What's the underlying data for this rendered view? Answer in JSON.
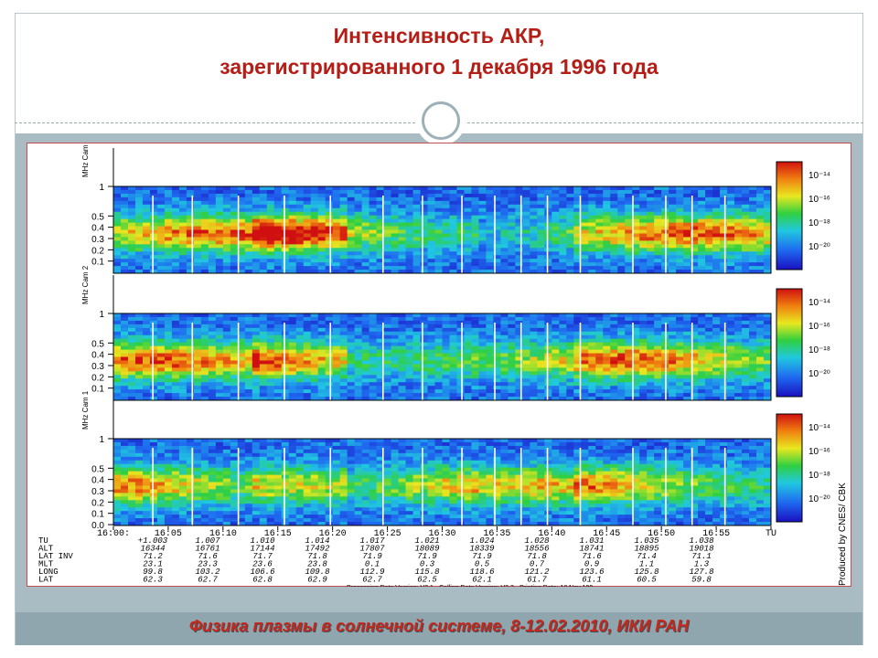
{
  "slide": {
    "title_line1": "Интенсивность АКР,",
    "title_line2": "зарегистрированного 1 декабря 1996 года",
    "footer": "Физика плазмы в солнечной системе, 8-12.02.2010, ИКИ РАН"
  },
  "chart_data": {
    "type": "heatmap",
    "panels": [
      {
        "ylabel": "MHz Cam 3",
        "yticks": [
          "1",
          "0.5",
          "0.4",
          "0.3",
          "0.2",
          "0.1"
        ]
      },
      {
        "ylabel": "MHz Cam 2",
        "yticks": [
          "1",
          "0.5",
          "0.4",
          "0.3",
          "0.2",
          "0.1"
        ]
      },
      {
        "ylabel": "MHz Cam 1",
        "yticks": [
          "1",
          "0.5",
          "0.4",
          "0.3",
          "0.2",
          "0.1",
          "0.0"
        ]
      }
    ],
    "colorbar_ticks": [
      "10⁻¹⁴",
      "10⁻¹⁶",
      "10⁻¹⁸",
      "10⁻²⁰"
    ],
    "x_ticks": [
      "16:00:",
      "16:05",
      "16:10",
      "16:15",
      "16:20",
      "16:25",
      "16:30",
      "16:35",
      "16:40",
      "16:45",
      "16:50",
      "16:55",
      "TU"
    ],
    "ephemeris": [
      {
        "label": "TU",
        "values": [
          "+1.003",
          "1.007",
          "1.010",
          "1.014",
          "1.017",
          "1.021",
          "1.024",
          "1.028",
          "1.031",
          "1.035",
          "1.038"
        ]
      },
      {
        "label": "ALT",
        "values": [
          "16344",
          "16761",
          "17144",
          "17492",
          "17807",
          "18089",
          "18339",
          "18556",
          "18741",
          "18895",
          "19018"
        ]
      },
      {
        "label": "LAT INV",
        "values": [
          "71.2",
          "71.6",
          "71.7",
          "71.8",
          "71.9",
          "71.9",
          "71.9",
          "71.8",
          "71.6",
          "71.4",
          "71.1"
        ]
      },
      {
        "label": "MLT",
        "values": [
          "23.1",
          "23.3",
          "23.6",
          "23.8",
          "0.1",
          "0.3",
          "0.5",
          "0.7",
          "0.9",
          "1.1",
          "1.3"
        ]
      },
      {
        "label": "LONG",
        "values": [
          "99.8",
          "103.2",
          "106.6",
          "109.8",
          "112.9",
          "115.8",
          "118.6",
          "121.2",
          "123.6",
          "125.8",
          "127.8"
        ]
      },
      {
        "label": "LAT",
        "values": [
          "62.3",
          "62.7",
          "62.8",
          "62.9",
          "62.7",
          "62.5",
          "62.1",
          "61.7",
          "61.1",
          "60.5",
          "59.8"
        ]
      }
    ],
    "producer": "Produced by CNES/ CBK",
    "processing_line": "Processing Data Version: V3.1 - Calling Data Version: V3.2 - Printing Date: 18 Nov 199"
  }
}
